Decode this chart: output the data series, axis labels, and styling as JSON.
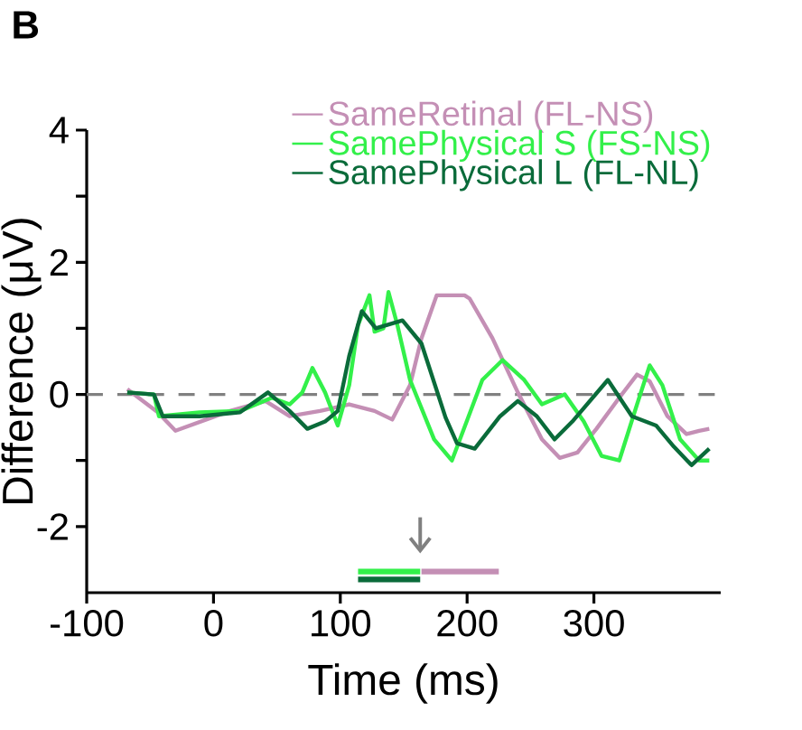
{
  "chart_data": {
    "type": "line",
    "title": "B",
    "xlabel": "Time (ms)",
    "ylabel": "Difference (μV)",
    "xlim": [
      -100,
      400
    ],
    "xticks": [
      -100,
      0,
      100,
      200,
      300
    ],
    "ylim": [
      -3,
      4
    ],
    "yticks": [
      {
        "value": -2,
        "label": "-2"
      },
      {
        "value": -1,
        "label": null
      },
      {
        "value": 0,
        "label": "0"
      },
      {
        "value": 1,
        "label": null
      },
      {
        "value": 2,
        "label": "2"
      },
      {
        "value": 3,
        "label": null
      },
      {
        "value": 4,
        "label": "4"
      }
    ],
    "legend": "top right",
    "line_style": "solid",
    "marker": "none",
    "ref_lines": [
      {
        "axis": "y",
        "value": 0,
        "color": "#808080",
        "line_style": "dashed"
      }
    ],
    "series": [
      {
        "name": "SameRetinal (FL-NS)",
        "color": "#c48fb5",
        "x": [
          -68,
          -44,
          -30,
          13,
          41,
          60,
          84,
          107,
          127,
          141,
          155,
          164,
          176,
          198,
          202,
          220,
          240,
          259,
          273,
          287,
          302,
          320,
          334,
          344,
          358,
          373,
          383,
          391
        ],
        "values": [
          0.08,
          -0.27,
          -0.55,
          -0.25,
          -0.1,
          -0.33,
          -0.25,
          -0.15,
          -0.25,
          -0.38,
          0.14,
          0.85,
          1.5,
          1.5,
          1.45,
          0.85,
          0.03,
          -0.68,
          -0.96,
          -0.88,
          -0.52,
          -0.05,
          0.3,
          0.2,
          -0.33,
          -0.6,
          -0.55,
          -0.52
        ]
      },
      {
        "name": "SamePhysical S (FS-NS)",
        "color": "#33f04a",
        "x": [
          -68,
          -47,
          -43,
          -11,
          21,
          46,
          60,
          70,
          78,
          88,
          98,
          107,
          114,
          123,
          127,
          134,
          138,
          145,
          155,
          174,
          188,
          192,
          212,
          228,
          245,
          259,
          277,
          292,
          306,
          320,
          334,
          344,
          354,
          368,
          383,
          391
        ],
        "values": [
          0.03,
          0,
          -0.33,
          -0.27,
          -0.25,
          -0.05,
          -0.15,
          0.03,
          0.4,
          0.03,
          -0.47,
          0.14,
          1.05,
          1.5,
          0.95,
          1.0,
          1.55,
          1.05,
          0.22,
          -0.68,
          -1.0,
          -0.8,
          0.22,
          0.52,
          0.22,
          -0.15,
          0,
          -0.41,
          -0.93,
          -1.0,
          -0.15,
          0.44,
          0.14,
          -0.68,
          -1.0,
          -1.0
        ]
      },
      {
        "name": "SamePhysical L (FL-NL)",
        "color": "#0a6b3a",
        "x": [
          -68,
          -47,
          -40,
          -11,
          21,
          43,
          60,
          74,
          88,
          98,
          107,
          117,
          128,
          149,
          164,
          183,
          192,
          206,
          226,
          240,
          255,
          269,
          283,
          311,
          330,
          349,
          363,
          377,
          391
        ],
        "values": [
          0.03,
          0,
          -0.33,
          -0.33,
          -0.27,
          0.03,
          -0.25,
          -0.52,
          -0.41,
          -0.25,
          0.58,
          1.26,
          1.0,
          1.12,
          0.77,
          -0.35,
          -0.74,
          -0.82,
          -0.33,
          -0.1,
          -0.33,
          -0.68,
          -0.41,
          0.22,
          -0.33,
          -0.47,
          -0.79,
          -1.07,
          -0.82
        ]
      },
      {
        "type": "line",
        "color": "#33f04a",
        "x": [
          114,
          163
        ],
        "values": [
          -2.68,
          -2.68
        ]
      },
      {
        "type": "line",
        "color": "#0a6b3a",
        "x": [
          114,
          163
        ],
        "values": [
          -2.8,
          -2.8
        ]
      },
      {
        "type": "line",
        "color": "#c48fb5",
        "x": [
          164,
          225
        ],
        "values": [
          -2.68,
          -2.68
        ]
      }
    ]
  }
}
